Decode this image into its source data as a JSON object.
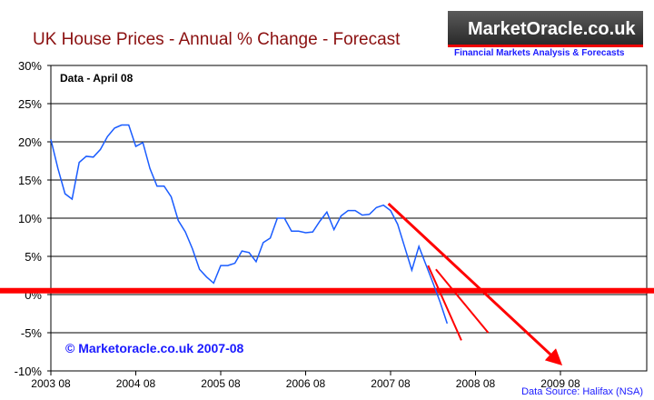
{
  "header": {
    "title": "UK House Prices -  Annual % Change - Forecast",
    "logo_text": "MarketOracle.co.uk",
    "tagline": "Financial Markets Analysis & Forecasts"
  },
  "chart_data": {
    "type": "line",
    "title": "UK House Prices -  Annual % Change - Forecast",
    "annotation": "Data - April 08",
    "copyright": "© Marketoracle.co.uk 2007-08",
    "source": "Data Source: Halifax (NSA)",
    "xlabel": "",
    "ylabel": "",
    "x_ticks": [
      "2003 08",
      "2004 08",
      "2005 08",
      "2006 08",
      "2007 08",
      "2008 08",
      "2009 08"
    ],
    "y_ticks": [
      "30%",
      "25%",
      "20%",
      "15%",
      "10%",
      "5%",
      "0%",
      "-5%",
      "-10%"
    ],
    "ylim": [
      -10,
      30
    ],
    "x_unit": "months since 2003 08",
    "series": [
      {
        "name": "Annual % change",
        "color": "#1a5cff",
        "start": "2003 08",
        "values": [
          20.3,
          16.5,
          13.2,
          12.5,
          17.3,
          18.1,
          18,
          19,
          20.7,
          21.8,
          22.2,
          22.2,
          19.4,
          19.9,
          16.5,
          14.2,
          14.2,
          12.8,
          9.7,
          8.2,
          6,
          3.3,
          2.3,
          1.5,
          3.8,
          3.8,
          4.1,
          5.7,
          5.5,
          4.3,
          6.8,
          7.4,
          10,
          10,
          8.3,
          8.3,
          8.1,
          8.2,
          9.6,
          10.8,
          8.5,
          10.3,
          11,
          11,
          10.4,
          10.5,
          11.4,
          11.7,
          11,
          9.2,
          6.2,
          3.2,
          6.3,
          3.9,
          1.5,
          -1,
          -3.8
        ]
      }
    ],
    "forecasts": [
      {
        "from": [
          47.7,
          11.9
        ],
        "to": [
          71.7,
          -8.8
        ],
        "arrow": true
      },
      {
        "from": [
          53.3,
          3.8
        ],
        "to": [
          58,
          -6
        ],
        "arrow": false
      },
      {
        "from": [
          54.4,
          3.3
        ],
        "to": [
          61.8,
          -5
        ],
        "arrow": false
      }
    ],
    "reference_line": {
      "y": 0.5,
      "color": "#ff0000"
    },
    "grid": true
  }
}
